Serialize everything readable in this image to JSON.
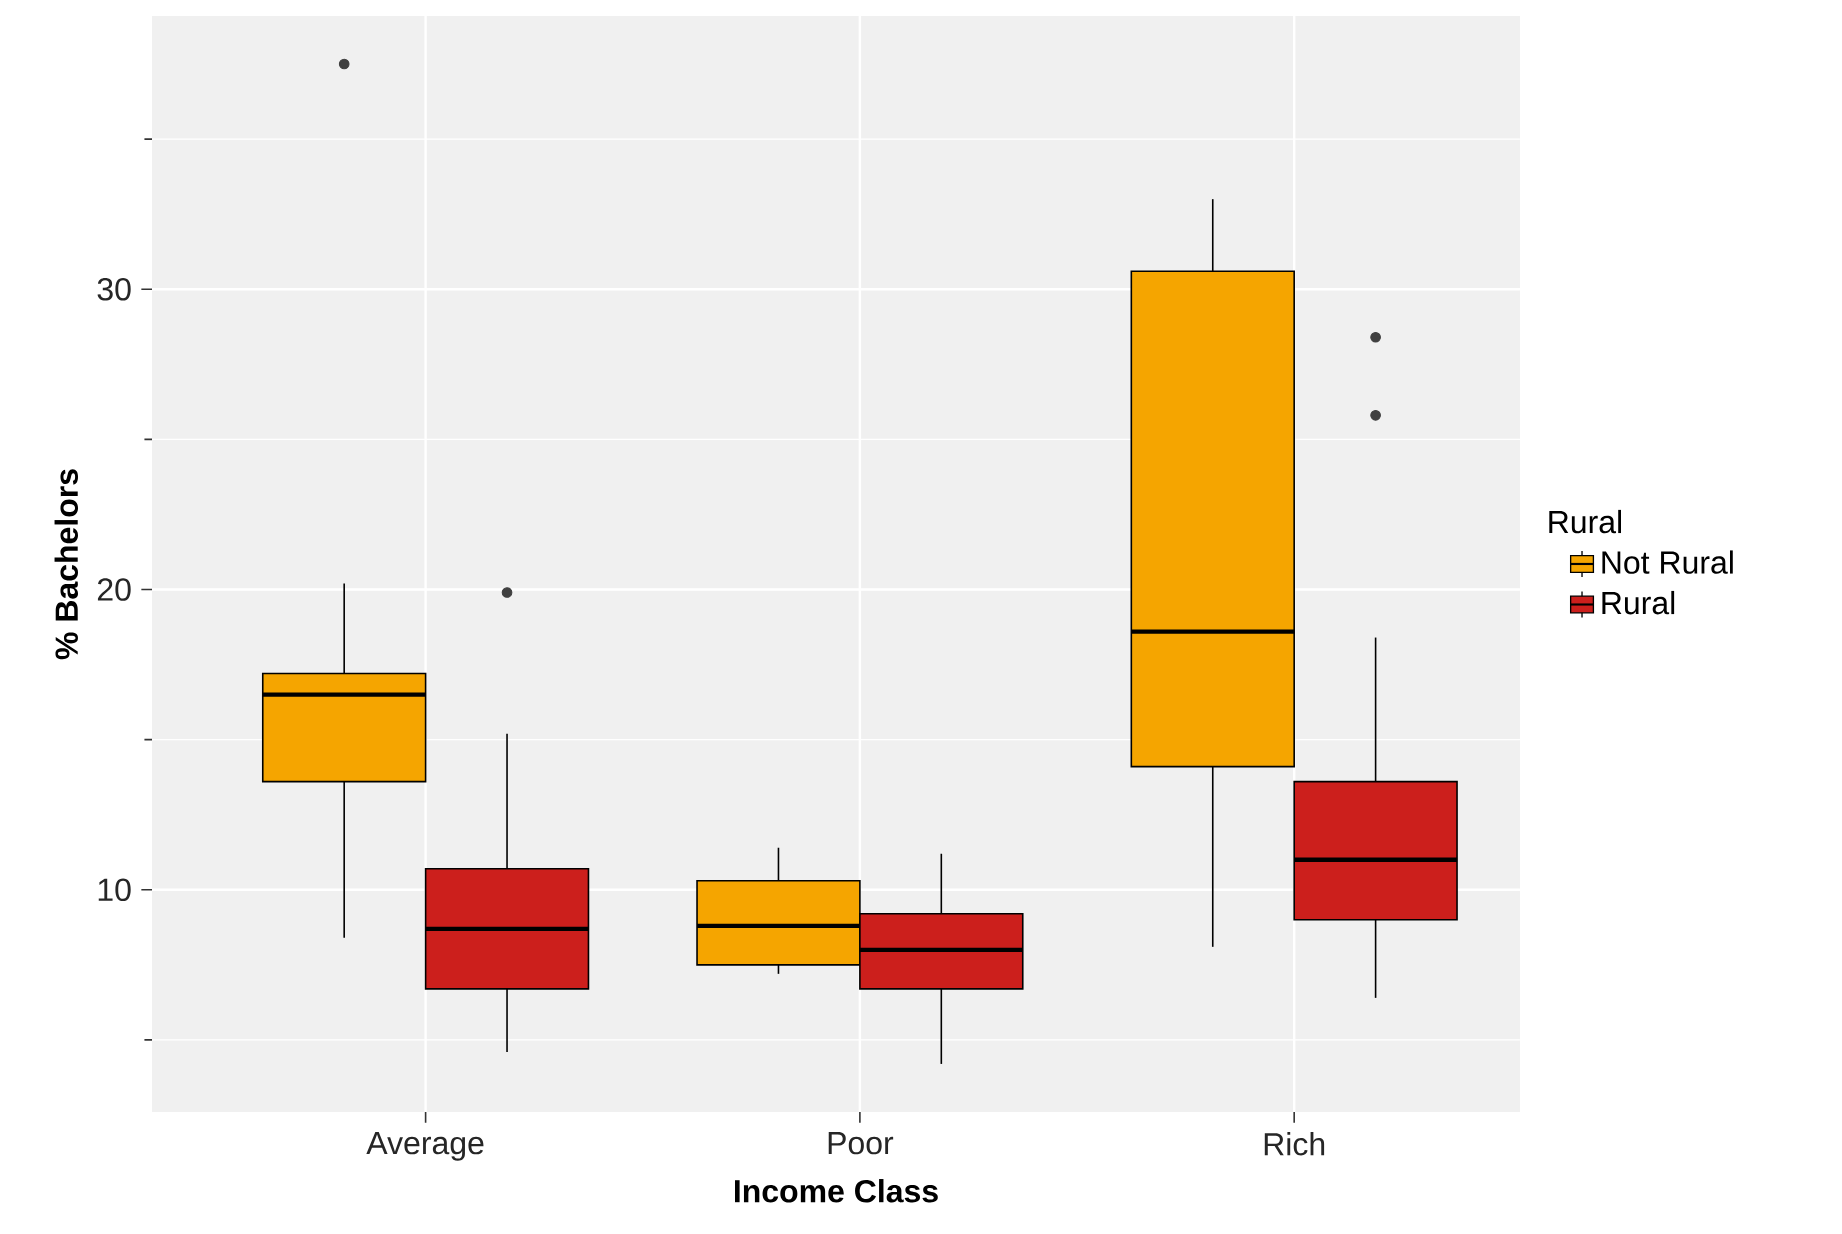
{
  "chart_data": {
    "type": "box",
    "xlabel": "Income Class",
    "ylabel": "% Bachelors",
    "legend_title": "Rural",
    "legend": "right",
    "grid": true,
    "categories": [
      "Average",
      "Poor",
      "Rich"
    ],
    "ylim": [
      2.6,
      39.1
    ],
    "yticks": [
      10,
      20,
      30
    ],
    "series": [
      {
        "name": "Not Rural",
        "color": "#f5a500",
        "boxes": [
          {
            "low": 8.4,
            "q1": 13.6,
            "median": 16.5,
            "q3": 17.2,
            "high": 20.2,
            "outliers": [
              37.5
            ]
          },
          {
            "low": 7.2,
            "q1": 7.5,
            "median": 8.8,
            "q3": 10.3,
            "high": 11.4
          },
          {
            "low": 8.1,
            "q1": 14.1,
            "median": 18.6,
            "q3": 30.6,
            "high": 33.0
          }
        ]
      },
      {
        "name": "Rural",
        "color": "#cc1f1c",
        "boxes": [
          {
            "low": 4.6,
            "q1": 6.7,
            "median": 8.7,
            "q3": 10.7,
            "high": 15.2,
            "outliers": [
              19.9
            ]
          },
          {
            "low": 4.2,
            "q1": 6.7,
            "median": 8.0,
            "q3": 9.2,
            "high": 11.2
          },
          {
            "low": 6.4,
            "q1": 9.0,
            "median": 11.0,
            "q3": 13.6,
            "high": 18.4,
            "outliers": [
              28.4,
              25.8
            ]
          }
        ]
      }
    ]
  }
}
